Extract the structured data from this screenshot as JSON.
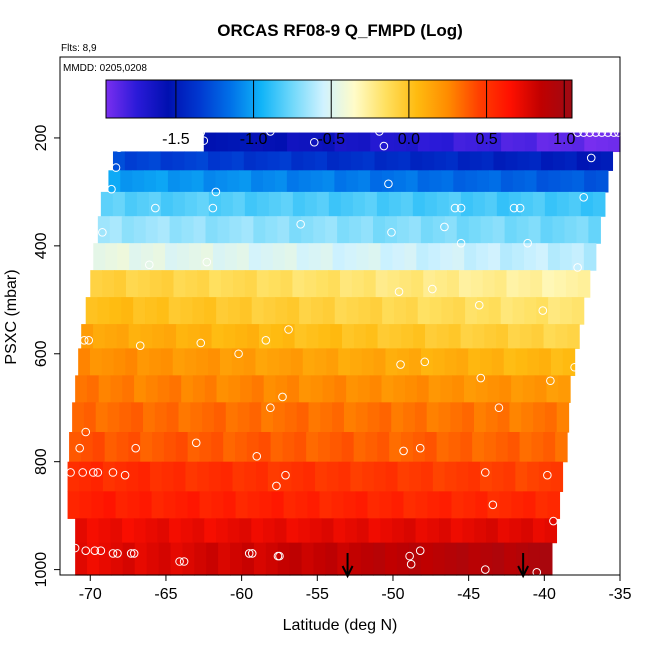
{
  "chart_data": {
    "type": "heatmap",
    "title": "ORCAS RF08-9 Q_FMPD (Log)",
    "annotations": [
      "Flts: 8,9",
      "MMDD: 0205,0208"
    ],
    "xlabel": "Latitude (deg N)",
    "ylabel": "PSXC (mbar)",
    "xlim": [
      -72,
      -35
    ],
    "ylim": [
      1010,
      50
    ],
    "y_reversed": true,
    "grid": false,
    "x_ticks": [
      -70,
      -65,
      -60,
      -55,
      -50,
      -45,
      -40,
      -35
    ],
    "y_ticks": [
      200,
      400,
      600,
      800,
      1000
    ],
    "colorbar": {
      "placement": "top",
      "range": [
        -1.95,
        1.05
      ],
      "ticks": [
        -1.5,
        -1.0,
        -0.5,
        0.0,
        0.5,
        1.0
      ],
      "tick_labels": [
        "-1.5",
        "-1.0",
        "-0.5",
        "0.0",
        "0.5",
        "1.0"
      ],
      "colors": [
        "#7a2ff0",
        "#2a1ad8",
        "#0010b0",
        "#0038d0",
        "#0070e8",
        "#10b4f8",
        "#70d8fa",
        "#d0f2ff",
        "#fffcc8",
        "#ffe060",
        "#ffbb10",
        "#ff8c00",
        "#ff4000",
        "#ff1000",
        "#c00000",
        "#9e0a14"
      ]
    },
    "bands": [
      {
        "p_top": 190,
        "p_bot": 225,
        "lat_start": -62.5,
        "lat_end": -35.0,
        "v_south": -1.5,
        "v_north": -1.95
      },
      {
        "p_top": 225,
        "p_bot": 260,
        "lat_start": -68.5,
        "lat_end": -35.5,
        "v_south": -1.3,
        "v_north": -1.5
      },
      {
        "p_top": 260,
        "p_bot": 300,
        "lat_start": -68.8,
        "lat_end": -35.8,
        "v_south": -1.0,
        "v_north": -1.25
      },
      {
        "p_top": 300,
        "p_bot": 345,
        "lat_start": -69.3,
        "lat_end": -36.0,
        "v_south": -0.8,
        "v_north": -0.85
      },
      {
        "p_top": 345,
        "p_bot": 395,
        "lat_start": -69.5,
        "lat_end": -36.3,
        "v_south": -0.65,
        "v_north": -0.75
      },
      {
        "p_top": 395,
        "p_bot": 445,
        "lat_start": -69.8,
        "lat_end": -36.6,
        "v_south": -0.45,
        "v_north": -0.6
      },
      {
        "p_top": 445,
        "p_bot": 495,
        "lat_start": -70.0,
        "lat_end": -37.0,
        "v_south": -0.05,
        "v_north": -0.3
      },
      {
        "p_top": 495,
        "p_bot": 545,
        "lat_start": -70.3,
        "lat_end": -37.4,
        "v_south": 0.05,
        "v_north": -0.2
      },
      {
        "p_top": 545,
        "p_bot": 590,
        "lat_start": -70.6,
        "lat_end": -37.7,
        "v_south": 0.15,
        "v_north": -0.1
      },
      {
        "p_top": 590,
        "p_bot": 640,
        "lat_start": -70.8,
        "lat_end": -38.0,
        "v_south": 0.25,
        "v_north": 0.05
      },
      {
        "p_top": 640,
        "p_bot": 690,
        "lat_start": -71.0,
        "lat_end": -38.3,
        "v_south": 0.3,
        "v_north": 0.2
      },
      {
        "p_top": 690,
        "p_bot": 745,
        "lat_start": -71.2,
        "lat_end": -38.4,
        "v_south": 0.35,
        "v_north": 0.3
      },
      {
        "p_top": 745,
        "p_bot": 800,
        "lat_start": -71.4,
        "lat_end": -38.5,
        "v_south": 0.4,
        "v_north": 0.35
      },
      {
        "p_top": 800,
        "p_bot": 855,
        "lat_start": -71.5,
        "lat_end": -38.8,
        "v_south": 0.55,
        "v_north": 0.45
      },
      {
        "p_top": 855,
        "p_bot": 905,
        "lat_start": -71.5,
        "lat_end": -39.0,
        "v_south": 0.6,
        "v_north": 0.55
      },
      {
        "p_top": 905,
        "p_bot": 950,
        "lat_start": -71.0,
        "lat_end": -39.2,
        "v_south": 0.7,
        "v_north": 0.75
      },
      {
        "p_top": 950,
        "p_bot": 1010,
        "lat_start": -71.0,
        "lat_end": -39.5,
        "v_south": 0.72,
        "v_north": 0.95
      }
    ],
    "points": [
      {
        "lat": -62.7,
        "p": 190
      },
      {
        "lat": -62.5,
        "p": 205
      },
      {
        "lat": -58.1,
        "p": 188
      },
      {
        "lat": -55.2,
        "p": 208
      },
      {
        "lat": -50.9,
        "p": 188
      },
      {
        "lat": -50.6,
        "p": 215
      },
      {
        "lat": -37.8,
        "p": 190
      },
      {
        "lat": -37.4,
        "p": 190
      },
      {
        "lat": -37.0,
        "p": 190
      },
      {
        "lat": -36.6,
        "p": 190
      },
      {
        "lat": -36.2,
        "p": 190
      },
      {
        "lat": -35.8,
        "p": 190
      },
      {
        "lat": -35.4,
        "p": 190
      },
      {
        "lat": -35.1,
        "p": 190
      },
      {
        "lat": -36.9,
        "p": 237
      },
      {
        "lat": -68.1,
        "p": 218
      },
      {
        "lat": -68.3,
        "p": 255
      },
      {
        "lat": -68.6,
        "p": 295
      },
      {
        "lat": -65.7,
        "p": 330
      },
      {
        "lat": -61.7,
        "p": 300
      },
      {
        "lat": -61.9,
        "p": 330
      },
      {
        "lat": -50.3,
        "p": 285
      },
      {
        "lat": -45.9,
        "p": 330
      },
      {
        "lat": -45.5,
        "p": 330
      },
      {
        "lat": -42.0,
        "p": 330
      },
      {
        "lat": -41.6,
        "p": 330
      },
      {
        "lat": -37.4,
        "p": 310
      },
      {
        "lat": -69.2,
        "p": 375
      },
      {
        "lat": -56.1,
        "p": 360
      },
      {
        "lat": -50.1,
        "p": 375
      },
      {
        "lat": -46.6,
        "p": 365
      },
      {
        "lat": -45.5,
        "p": 395
      },
      {
        "lat": -41.1,
        "p": 395
      },
      {
        "lat": -66.1,
        "p": 435
      },
      {
        "lat": -62.3,
        "p": 430
      },
      {
        "lat": -37.8,
        "p": 440
      },
      {
        "lat": -47.4,
        "p": 480
      },
      {
        "lat": -49.6,
        "p": 485
      },
      {
        "lat": -44.3,
        "p": 510
      },
      {
        "lat": -40.1,
        "p": 520
      },
      {
        "lat": -70.4,
        "p": 575
      },
      {
        "lat": -70.1,
        "p": 575
      },
      {
        "lat": -66.7,
        "p": 585
      },
      {
        "lat": -62.7,
        "p": 580
      },
      {
        "lat": -60.2,
        "p": 600
      },
      {
        "lat": -58.4,
        "p": 575
      },
      {
        "lat": -56.9,
        "p": 555
      },
      {
        "lat": -49.5,
        "p": 620
      },
      {
        "lat": -47.9,
        "p": 615
      },
      {
        "lat": -44.2,
        "p": 645
      },
      {
        "lat": -39.6,
        "p": 650
      },
      {
        "lat": -38.0,
        "p": 625
      },
      {
        "lat": -57.3,
        "p": 680
      },
      {
        "lat": -58.1,
        "p": 700
      },
      {
        "lat": -43.0,
        "p": 700
      },
      {
        "lat": -70.3,
        "p": 745
      },
      {
        "lat": -70.7,
        "p": 775
      },
      {
        "lat": -67.0,
        "p": 775
      },
      {
        "lat": -63.0,
        "p": 765
      },
      {
        "lat": -59.0,
        "p": 790
      },
      {
        "lat": -49.3,
        "p": 780
      },
      {
        "lat": -48.2,
        "p": 775
      },
      {
        "lat": -71.3,
        "p": 820
      },
      {
        "lat": -70.5,
        "p": 820
      },
      {
        "lat": -69.8,
        "p": 820
      },
      {
        "lat": -69.5,
        "p": 820
      },
      {
        "lat": -68.5,
        "p": 820
      },
      {
        "lat": -67.7,
        "p": 825
      },
      {
        "lat": -57.7,
        "p": 845
      },
      {
        "lat": -57.1,
        "p": 825
      },
      {
        "lat": -43.9,
        "p": 820
      },
      {
        "lat": -39.8,
        "p": 825
      },
      {
        "lat": -43.4,
        "p": 880
      },
      {
        "lat": -39.4,
        "p": 910
      },
      {
        "lat": -71.0,
        "p": 960
      },
      {
        "lat": -70.3,
        "p": 965
      },
      {
        "lat": -69.7,
        "p": 965
      },
      {
        "lat": -69.3,
        "p": 965
      },
      {
        "lat": -68.5,
        "p": 970
      },
      {
        "lat": -68.2,
        "p": 970
      },
      {
        "lat": -67.3,
        "p": 970
      },
      {
        "lat": -67.1,
        "p": 970
      },
      {
        "lat": -64.1,
        "p": 985
      },
      {
        "lat": -63.8,
        "p": 985
      },
      {
        "lat": -59.5,
        "p": 970
      },
      {
        "lat": -59.3,
        "p": 970
      },
      {
        "lat": -57.6,
        "p": 975
      },
      {
        "lat": -57.5,
        "p": 975
      },
      {
        "lat": -48.9,
        "p": 975
      },
      {
        "lat": -48.2,
        "p": 965
      },
      {
        "lat": -48.8,
        "p": 990
      },
      {
        "lat": -43.9,
        "p": 1000
      },
      {
        "lat": -40.5,
        "p": 1005
      },
      {
        "lat": -38.7,
        "p": 950
      }
    ],
    "arrows": [
      {
        "lat": -53.0
      },
      {
        "lat": -41.4
      }
    ]
  }
}
